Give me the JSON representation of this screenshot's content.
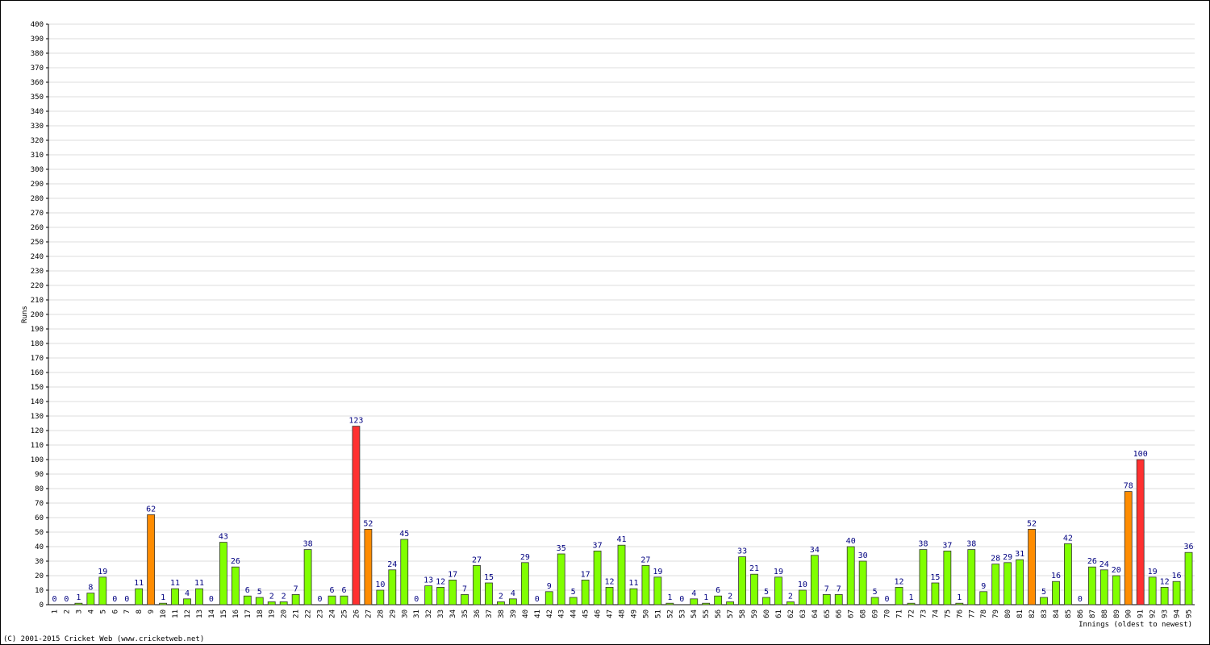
{
  "chart_data": {
    "type": "bar",
    "y_label": "Runs",
    "x_label": "Innings (oldest to newest)",
    "footer": "(C) 2001-2015 Cricket Web (www.cricketweb.net)",
    "categories": [
      "1",
      "2",
      "3",
      "4",
      "5",
      "6",
      "7",
      "8",
      "9",
      "10",
      "11",
      "12",
      "13",
      "14",
      "15",
      "16",
      "17",
      "18",
      "19",
      "20",
      "21",
      "22",
      "23",
      "24",
      "25",
      "26",
      "27",
      "28",
      "29",
      "30",
      "31",
      "32",
      "33",
      "34",
      "35",
      "36",
      "37",
      "38",
      "39",
      "40",
      "41",
      "42",
      "43",
      "44",
      "45",
      "46",
      "47",
      "48",
      "49",
      "50",
      "51",
      "52",
      "53",
      "54",
      "55",
      "56",
      "57",
      "58",
      "59",
      "60",
      "61",
      "62",
      "63",
      "64",
      "65",
      "66",
      "67",
      "68",
      "69",
      "70",
      "71",
      "72",
      "73",
      "74",
      "75",
      "76",
      "77",
      "78",
      "79",
      "80",
      "81",
      "82",
      "83",
      "84",
      "85",
      "86",
      "87",
      "88",
      "89",
      "90",
      "91",
      "92",
      "93",
      "94",
      "95"
    ],
    "values": [
      0,
      0,
      1,
      8,
      19,
      0,
      0,
      11,
      62,
      1,
      11,
      4,
      11,
      0,
      43,
      26,
      6,
      5,
      2,
      2,
      7,
      38,
      0,
      6,
      6,
      123,
      52,
      10,
      24,
      45,
      0,
      13,
      12,
      17,
      7,
      27,
      15,
      2,
      4,
      29,
      0,
      9,
      35,
      5,
      17,
      37,
      12,
      41,
      11,
      27,
      19,
      1,
      0,
      4,
      1,
      6,
      2,
      33,
      21,
      5,
      19,
      2,
      10,
      34,
      7,
      7,
      40,
      30,
      5,
      0,
      12,
      1,
      38,
      15,
      37,
      1,
      38,
      9,
      28,
      29,
      31,
      52,
      5,
      16,
      42,
      0,
      26,
      24,
      20,
      78,
      100,
      19,
      12,
      16,
      36
    ],
    "colors": [
      "#80ff00",
      "#80ff00",
      "#80ff00",
      "#80ff00",
      "#80ff00",
      "#80ff00",
      "#80ff00",
      "#80ff00",
      "#ff8c00",
      "#80ff00",
      "#80ff00",
      "#80ff00",
      "#80ff00",
      "#80ff00",
      "#80ff00",
      "#80ff00",
      "#80ff00",
      "#80ff00",
      "#80ff00",
      "#80ff00",
      "#80ff00",
      "#80ff00",
      "#80ff00",
      "#80ff00",
      "#80ff00",
      "#ff3030",
      "#ff8c00",
      "#80ff00",
      "#80ff00",
      "#80ff00",
      "#80ff00",
      "#80ff00",
      "#80ff00",
      "#80ff00",
      "#80ff00",
      "#80ff00",
      "#80ff00",
      "#80ff00",
      "#80ff00",
      "#80ff00",
      "#80ff00",
      "#80ff00",
      "#80ff00",
      "#80ff00",
      "#80ff00",
      "#80ff00",
      "#80ff00",
      "#80ff00",
      "#80ff00",
      "#80ff00",
      "#80ff00",
      "#80ff00",
      "#80ff00",
      "#80ff00",
      "#80ff00",
      "#80ff00",
      "#80ff00",
      "#80ff00",
      "#80ff00",
      "#80ff00",
      "#80ff00",
      "#80ff00",
      "#80ff00",
      "#80ff00",
      "#80ff00",
      "#80ff00",
      "#80ff00",
      "#80ff00",
      "#80ff00",
      "#80ff00",
      "#80ff00",
      "#80ff00",
      "#80ff00",
      "#80ff00",
      "#80ff00",
      "#80ff00",
      "#80ff00",
      "#80ff00",
      "#80ff00",
      "#80ff00",
      "#80ff00",
      "#ff8c00",
      "#80ff00",
      "#80ff00",
      "#80ff00",
      "#80ff00",
      "#80ff00",
      "#80ff00",
      "#80ff00",
      "#ff8c00",
      "#ff3030",
      "#80ff00",
      "#80ff00",
      "#80ff00",
      "#80ff00"
    ],
    "ylim": [
      0,
      400
    ],
    "yticks": [
      0,
      10,
      20,
      30,
      40,
      50,
      60,
      70,
      80,
      90,
      100,
      110,
      120,
      130,
      140,
      150,
      160,
      170,
      180,
      190,
      200,
      210,
      220,
      230,
      240,
      250,
      260,
      270,
      280,
      290,
      300,
      310,
      320,
      330,
      340,
      350,
      360,
      370,
      380,
      390,
      400
    ],
    "grid": true
  }
}
